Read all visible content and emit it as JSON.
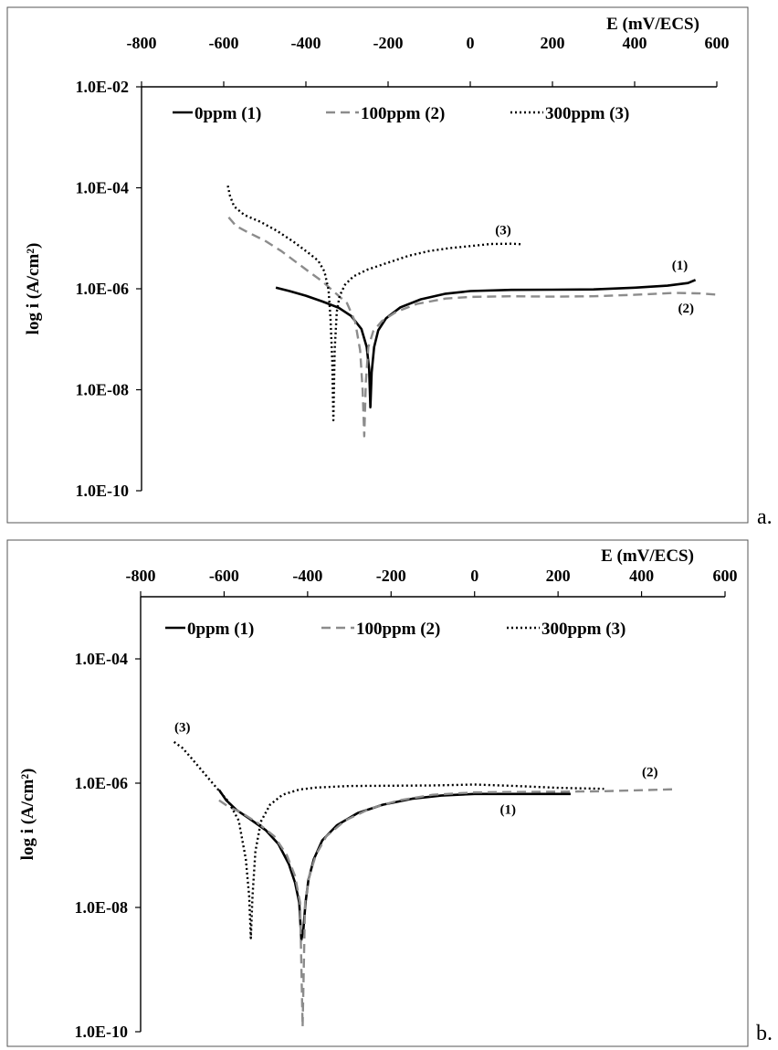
{
  "chart_data": [
    {
      "type": "line",
      "panel_label": "a.",
      "xlabel": "E (mV/ECS)",
      "ylabel": "log i (A/cm²)",
      "x_axis_position": "top",
      "log_y": true,
      "xlim": [
        -800,
        600
      ],
      "ylim": [
        1e-10,
        0.01
      ],
      "x_ticks": [
        -800,
        -600,
        -400,
        -200,
        0,
        200,
        400,
        600
      ],
      "y_ticks": [
        {
          "value": 1e-10,
          "label": "1.0E-10"
        },
        {
          "value": 1e-08,
          "label": "1.0E-08"
        },
        {
          "value": 1e-06,
          "label": "1.0E-06"
        },
        {
          "value": 0.0001,
          "label": "1.0E-04"
        },
        {
          "value": 0.01,
          "label": "1.0E-02"
        }
      ],
      "grid": false,
      "legend_position": "top",
      "series": [
        {
          "name": "0ppm (1)",
          "color": "#000000",
          "style": "solid",
          "points": [
            [
              -473,
              1.05e-06
            ],
            [
              -440,
              9e-07
            ],
            [
              -400,
              7.3e-07
            ],
            [
              -360,
              5.6e-07
            ],
            [
              -320,
              4.2e-07
            ],
            [
              -290,
              2.9e-07
            ],
            [
              -265,
              1.6e-07
            ],
            [
              -252,
              7e-08
            ],
            [
              -246,
              2.5e-08
            ],
            [
              -243,
              4.5e-09
            ],
            [
              -240,
              2.2e-08
            ],
            [
              -234,
              7e-08
            ],
            [
              -224,
              1.5e-07
            ],
            [
              -205,
              2.6e-07
            ],
            [
              -170,
              4.3e-07
            ],
            [
              -120,
              6.2e-07
            ],
            [
              -60,
              8e-07
            ],
            [
              0,
              9e-07
            ],
            [
              100,
              9.5e-07
            ],
            [
              200,
              9.6e-07
            ],
            [
              300,
              9.7e-07
            ],
            [
              400,
              1.05e-06
            ],
            [
              480,
              1.15e-06
            ],
            [
              530,
              1.3e-06
            ],
            [
              548,
              1.5e-06
            ]
          ]
        },
        {
          "name": "100ppm (2)",
          "color": "#8c8c8c",
          "style": "dashed",
          "points": [
            [
              -588,
              2.6e-05
            ],
            [
              -570,
              1.75e-05
            ],
            [
              -540,
              1.3e-05
            ],
            [
              -500,
              9e-06
            ],
            [
              -460,
              5.6e-06
            ],
            [
              -420,
              3.2e-06
            ],
            [
              -390,
              2.1e-06
            ],
            [
              -360,
              1.4e-06
            ],
            [
              -330,
              8.5e-07
            ],
            [
              -300,
              5.2e-07
            ],
            [
              -280,
              2.2e-07
            ],
            [
              -268,
              6e-08
            ],
            [
              -262,
              1e-08
            ],
            [
              -258,
              1.2e-09
            ],
            [
              -254,
              1.5e-08
            ],
            [
              -248,
              7e-08
            ],
            [
              -236,
              1.45e-07
            ],
            [
              -215,
              2.3e-07
            ],
            [
              -180,
              3.5e-07
            ],
            [
              -130,
              5e-07
            ],
            [
              -60,
              6.4e-07
            ],
            [
              0,
              6.9e-07
            ],
            [
              100,
              7.1e-07
            ],
            [
              200,
              7e-07
            ],
            [
              300,
              7.1e-07
            ],
            [
              400,
              7.6e-07
            ],
            [
              500,
              8.3e-07
            ],
            [
              560,
              8.1e-07
            ],
            [
              605,
              7.6e-07
            ]
          ]
        },
        {
          "name": "300ppm (3)",
          "color": "#000000",
          "style": "dotted",
          "points": [
            [
              -590,
              0.00011
            ],
            [
              -585,
              7e-05
            ],
            [
              -575,
              4.3e-05
            ],
            [
              -550,
              2.9e-05
            ],
            [
              -510,
              2.1e-05
            ],
            [
              -470,
              1.4e-05
            ],
            [
              -430,
              8.5e-06
            ],
            [
              -395,
              5.2e-06
            ],
            [
              -370,
              3.6e-06
            ],
            [
              -355,
              2.2e-06
            ],
            [
              -345,
              9.5e-07
            ],
            [
              -340,
              2.5e-07
            ],
            [
              -336,
              4e-08
            ],
            [
              -333,
              2.5e-09
            ],
            [
              -330,
              6e-08
            ],
            [
              -325,
              3.5e-07
            ],
            [
              -318,
              7.2e-07
            ],
            [
              -305,
              1.2e-06
            ],
            [
              -285,
              1.75e-06
            ],
            [
              -250,
              2.4e-06
            ],
            [
              -200,
              3.3e-06
            ],
            [
              -150,
              4.5e-06
            ],
            [
              -100,
              5.6e-06
            ],
            [
              -50,
              6.4e-06
            ],
            [
              0,
              7e-06
            ],
            [
              50,
              7.7e-06
            ],
            [
              100,
              7.8e-06
            ],
            [
              125,
              7.6e-06
            ]
          ]
        }
      ],
      "annotations": [
        {
          "text": "(3)",
          "x": 80,
          "y": 1.2e-05
        },
        {
          "text": "(1)",
          "x": 510,
          "y": 2.4e-06
        },
        {
          "text": "(2)",
          "x": 525,
          "y": 3.4e-07
        }
      ]
    },
    {
      "type": "line",
      "panel_label": "b.",
      "xlabel": "E (mV/ECS)",
      "ylabel": "log i (A/cm²)",
      "x_axis_position": "top",
      "log_y": true,
      "xlim": [
        -800,
        600
      ],
      "ylim": [
        1e-10,
        0.001
      ],
      "x_ticks": [
        -800,
        -600,
        -400,
        -200,
        0,
        200,
        400,
        600
      ],
      "y_ticks": [
        {
          "value": 1e-10,
          "label": "1.0E-10"
        },
        {
          "value": 1e-08,
          "label": "1.0E-08"
        },
        {
          "value": 1e-06,
          "label": "1.0E-06"
        },
        {
          "value": 0.0001,
          "label": "1.0E-04"
        }
      ],
      "grid": false,
      "legend_position": "top",
      "series": [
        {
          "name": "0ppm (1)",
          "color": "#000000",
          "style": "solid",
          "points": [
            [
              -612,
              7.8e-07
            ],
            [
              -595,
              5.3e-07
            ],
            [
              -570,
              3.7e-07
            ],
            [
              -540,
              2.7e-07
            ],
            [
              -500,
              1.75e-07
            ],
            [
              -470,
              1.05e-07
            ],
            [
              -445,
              5e-08
            ],
            [
              -430,
              2.5e-08
            ],
            [
              -420,
              1.2e-08
            ],
            [
              -415,
              3e-09
            ],
            [
              -410,
              4.5e-09
            ],
            [
              -405,
              1.2e-08
            ],
            [
              -398,
              2.8e-08
            ],
            [
              -385,
              6e-08
            ],
            [
              -365,
              1.2e-07
            ],
            [
              -330,
              2.1e-07
            ],
            [
              -280,
              3.3e-07
            ],
            [
              -220,
              4.5e-07
            ],
            [
              -150,
              5.6e-07
            ],
            [
              -80,
              6.3e-07
            ],
            [
              0,
              6.7e-07
            ],
            [
              100,
              6.7e-07
            ],
            [
              200,
              6.7e-07
            ],
            [
              230,
              6.7e-07
            ]
          ]
        },
        {
          "name": "100ppm (2)",
          "color": "#8c8c8c",
          "style": "dashed",
          "points": [
            [
              -612,
              5.3e-07
            ],
            [
              -590,
              4.2e-07
            ],
            [
              -560,
              3.4e-07
            ],
            [
              -520,
              2.3e-07
            ],
            [
              -480,
              1.4e-07
            ],
            [
              -450,
              7e-08
            ],
            [
              -430,
              3.2e-08
            ],
            [
              -418,
              1.2e-08
            ],
            [
              -412,
              1.2e-10
            ],
            [
              -406,
              1.2e-08
            ],
            [
              -396,
              3.2e-08
            ],
            [
              -380,
              7e-08
            ],
            [
              -355,
              1.4e-07
            ],
            [
              -310,
              2.5e-07
            ],
            [
              -250,
              3.9e-07
            ],
            [
              -180,
              5.3e-07
            ],
            [
              -100,
              6.5e-07
            ],
            [
              0,
              7.1e-07
            ],
            [
              100,
              7.2e-07
            ],
            [
              200,
              7.3e-07
            ],
            [
              300,
              7.4e-07
            ],
            [
              400,
              7.7e-07
            ],
            [
              485,
              8e-07
            ]
          ]
        },
        {
          "name": "300ppm (3)",
          "color": "#000000",
          "style": "dotted",
          "points": [
            [
              -720,
              4.6e-06
            ],
            [
              -700,
              3.7e-06
            ],
            [
              -680,
              2.6e-06
            ],
            [
              -650,
              1.5e-06
            ],
            [
              -620,
              8.7e-07
            ],
            [
              -590,
              5.1e-07
            ],
            [
              -565,
              2.5e-07
            ],
            [
              -548,
              6e-08
            ],
            [
              -540,
              1.5e-08
            ],
            [
              -536,
              3.2e-09
            ],
            [
              -532,
              1.5e-08
            ],
            [
              -525,
              8e-08
            ],
            [
              -512,
              2.4e-07
            ],
            [
              -490,
              4.5e-07
            ],
            [
              -460,
              6.5e-07
            ],
            [
              -420,
              7.9e-07
            ],
            [
              -380,
              8.5e-07
            ],
            [
              -300,
              9e-07
            ],
            [
              -200,
              9.1e-07
            ],
            [
              -100,
              9.2e-07
            ],
            [
              0,
              9.5e-07
            ],
            [
              100,
              9e-07
            ],
            [
              200,
              8.4e-07
            ],
            [
              310,
              8.1e-07
            ]
          ]
        }
      ],
      "annotations": [
        {
          "text": "(3)",
          "x": -700,
          "y": 6.8e-06
        },
        {
          "text": "(2)",
          "x": 420,
          "y": 1.28e-06
        },
        {
          "text": "(1)",
          "x": 80,
          "y": 3.2e-07
        }
      ]
    }
  ]
}
